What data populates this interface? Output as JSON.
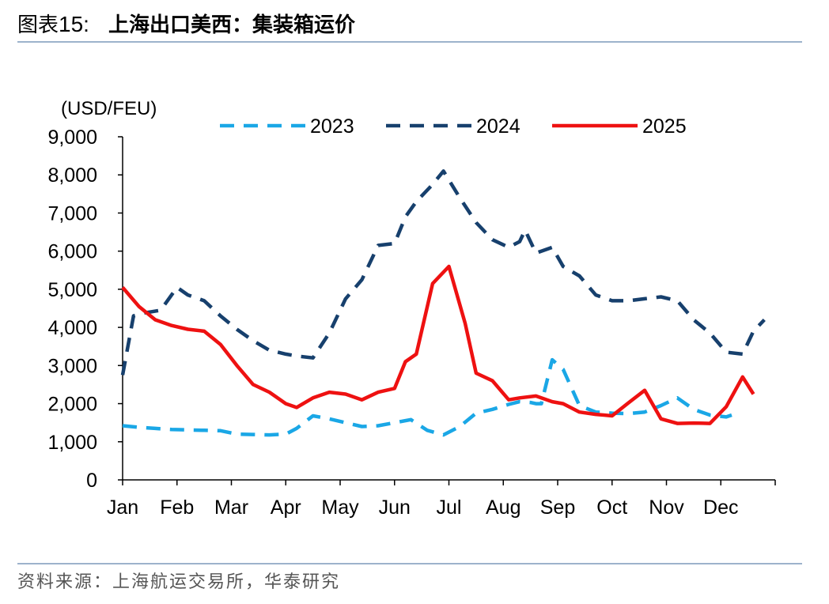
{
  "header": {
    "prefix": "图表",
    "number": "15:",
    "title": "上海出口美西：集装箱运价"
  },
  "footer": {
    "source": "资料来源：上海航运交易所，华泰研究"
  },
  "colors": {
    "s2023": "#1aa7e6",
    "s2024": "#17406d",
    "s2025": "#ee1111",
    "rule": "#9db3cc",
    "axis": "#000000"
  },
  "chart_data": {
    "type": "line",
    "title": "上海出口美西：集装箱运价",
    "ylabel": "(USD/FEU)",
    "xlabel": "",
    "xlim": [
      0,
      12
    ],
    "ylim": [
      0,
      9000
    ],
    "yticks": [
      0,
      1000,
      2000,
      3000,
      4000,
      5000,
      6000,
      7000,
      8000,
      9000
    ],
    "ytick_labels": [
      "0",
      "1,000",
      "2,000",
      "3,000",
      "4,000",
      "5,000",
      "6,000",
      "7,000",
      "8,000",
      "9,000"
    ],
    "months": [
      "Jan",
      "Feb",
      "Mar",
      "Apr",
      "May",
      "Jun",
      "Jul",
      "Aug",
      "Sep",
      "Oct",
      "Nov",
      "Dec"
    ],
    "legend_position": "top-center",
    "series": [
      {
        "name": "2023",
        "style": "dashed",
        "x": [
          0.0,
          0.3,
          0.6,
          0.9,
          1.2,
          1.5,
          1.8,
          2.1,
          2.4,
          2.7,
          3.0,
          3.2,
          3.5,
          3.8,
          4.1,
          4.4,
          4.7,
          5.0,
          5.3,
          5.6,
          5.9,
          6.2,
          6.5,
          6.8,
          7.1,
          7.3,
          7.5,
          7.6,
          7.7,
          7.9,
          8.1,
          8.4,
          8.7,
          9.0,
          9.3,
          9.6,
          9.9,
          10.2,
          10.5,
          10.8,
          11.1,
          11.2
        ],
        "values": [
          1420,
          1380,
          1350,
          1320,
          1310,
          1300,
          1290,
          1200,
          1190,
          1180,
          1200,
          1350,
          1680,
          1600,
          1500,
          1400,
          1420,
          1500,
          1580,
          1300,
          1180,
          1400,
          1750,
          1850,
          1980,
          2050,
          2030,
          2000,
          2000,
          3150,
          2900,
          1950,
          1780,
          1750,
          1740,
          1780,
          1950,
          2150,
          1850,
          1700,
          1650,
          1700
        ]
      },
      {
        "name": "2024",
        "style": "dashed",
        "x": [
          0.0,
          0.2,
          0.4,
          0.7,
          1.0,
          1.2,
          1.5,
          1.8,
          2.1,
          2.4,
          2.7,
          3.0,
          3.2,
          3.5,
          3.8,
          4.1,
          4.4,
          4.7,
          5.0,
          5.2,
          5.4,
          5.7,
          5.9,
          6.2,
          6.5,
          6.8,
          7.1,
          7.3,
          7.4,
          7.6,
          7.9,
          8.1,
          8.4,
          8.7,
          9.0,
          9.3,
          9.6,
          9.9,
          10.2,
          10.5,
          10.8,
          11.1,
          11.4,
          11.6,
          11.8
        ],
        "values": [
          2750,
          4300,
          4380,
          4450,
          5050,
          4850,
          4700,
          4300,
          3950,
          3650,
          3400,
          3300,
          3250,
          3200,
          3850,
          4750,
          5250,
          6150,
          6200,
          6900,
          7300,
          7750,
          8100,
          7400,
          6750,
          6300,
          6100,
          6250,
          6550,
          5950,
          6100,
          5600,
          5350,
          4850,
          4700,
          4700,
          4750,
          4800,
          4700,
          4200,
          3850,
          3350,
          3300,
          3900,
          4200
        ]
      },
      {
        "name": "2025",
        "style": "solid",
        "x": [
          0.0,
          0.3,
          0.6,
          0.9,
          1.2,
          1.5,
          1.8,
          2.1,
          2.4,
          2.7,
          3.0,
          3.2,
          3.5,
          3.8,
          4.1,
          4.4,
          4.7,
          5.0,
          5.2,
          5.4,
          5.7,
          6.0,
          6.3,
          6.5,
          6.8,
          7.1,
          7.3,
          7.6,
          7.9,
          8.1,
          8.4,
          8.7,
          9.0,
          9.3,
          9.6,
          9.9,
          10.2,
          10.5,
          10.8,
          11.1,
          11.4,
          11.6
        ],
        "values": [
          5050,
          4550,
          4200,
          4050,
          3950,
          3900,
          3550,
          3000,
          2500,
          2300,
          2000,
          1900,
          2150,
          2300,
          2250,
          2100,
          2300,
          2400,
          3100,
          3300,
          5150,
          5600,
          4100,
          2800,
          2600,
          2100,
          2150,
          2200,
          2050,
          2000,
          1780,
          1720,
          1680,
          2020,
          2350,
          1600,
          1480,
          1490,
          1480,
          1920,
          2700,
          2250
        ]
      }
    ]
  }
}
